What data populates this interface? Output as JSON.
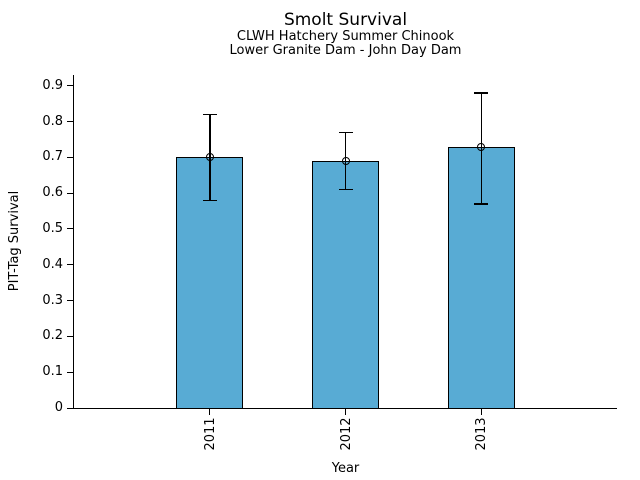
{
  "chart_data": {
    "type": "bar",
    "title": "Smolt Survival",
    "subtitle_line1": "CLWH Hatchery Summer Chinook",
    "subtitle_line2": "Lower Granite Dam - John Day Dam",
    "xlabel": "Year",
    "ylabel": "PIT-Tag Survival",
    "categories": [
      "2011",
      "2012",
      "2013"
    ],
    "values": [
      0.7,
      0.69,
      0.73
    ],
    "error_low": [
      0.58,
      0.61,
      0.57
    ],
    "error_high": [
      0.82,
      0.77,
      0.88
    ],
    "ylim": [
      0,
      0.93
    ],
    "yticks": [
      0,
      0.1,
      0.2,
      0.3,
      0.4,
      0.5,
      0.6,
      0.7,
      0.8,
      0.9
    ],
    "ytick_labels": [
      "0",
      "0.1",
      "0.2",
      "0.3",
      "0.4",
      "0.5",
      "0.6",
      "0.7",
      "0.8",
      "0.9"
    ],
    "grid": false,
    "legend": null,
    "bar_color": "#58ABD4",
    "bar_edge_color": "#000000",
    "error_color": "#000000",
    "marker": "open-circle",
    "marker_description": "open circle at mean on top of each bar"
  }
}
